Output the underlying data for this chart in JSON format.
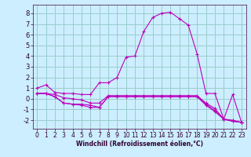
{
  "title": "",
  "xlabel": "Windchill (Refroidissement éolien,°C)",
  "ylabel": "",
  "bg_color": "#cceeff",
  "grid_color": "#99cccc",
  "line_color": "#bb00bb",
  "xlim": [
    -0.5,
    23.5
  ],
  "ylim": [
    -2.8,
    8.8
  ],
  "xticks": [
    0,
    1,
    2,
    3,
    4,
    5,
    6,
    7,
    8,
    9,
    10,
    11,
    12,
    13,
    14,
    15,
    16,
    17,
    18,
    19,
    20,
    21,
    22,
    23
  ],
  "yticks": [
    -2,
    -1,
    0,
    1,
    2,
    3,
    4,
    5,
    6,
    7,
    8
  ],
  "curves": [
    {
      "x": [
        0,
        1,
        2,
        3,
        4,
        5,
        6,
        7,
        8,
        9,
        10,
        11,
        12,
        13,
        14,
        15,
        16,
        17,
        18,
        19,
        20,
        21,
        22,
        23
      ],
      "y": [
        1.0,
        1.3,
        0.6,
        0.5,
        0.5,
        0.4,
        0.4,
        1.5,
        1.5,
        2.0,
        3.9,
        4.0,
        6.3,
        7.6,
        8.0,
        8.1,
        7.5,
        6.9,
        4.2,
        0.5,
        0.5,
        -1.9,
        0.4,
        -2.2
      ]
    },
    {
      "x": [
        0,
        1,
        2,
        3,
        4,
        5,
        6,
        7,
        8,
        9,
        10,
        11,
        12,
        13,
        14,
        15,
        16,
        17,
        18,
        19,
        20,
        21,
        22,
        23
      ],
      "y": [
        0.5,
        0.5,
        0.4,
        0.1,
        0.0,
        -0.1,
        -0.4,
        -0.4,
        0.3,
        0.3,
        0.3,
        0.3,
        0.3,
        0.3,
        0.3,
        0.3,
        0.3,
        0.3,
        0.3,
        -0.4,
        -0.9,
        -1.9,
        -2.0,
        -2.2
      ]
    },
    {
      "x": [
        0,
        1,
        2,
        3,
        4,
        5,
        6,
        7,
        8,
        9,
        10,
        11,
        12,
        13,
        14,
        15,
        16,
        17,
        18,
        19,
        20,
        21,
        22,
        23
      ],
      "y": [
        0.5,
        0.5,
        0.2,
        -0.4,
        -0.5,
        -0.5,
        -0.6,
        -0.8,
        0.2,
        0.2,
        0.2,
        0.2,
        0.2,
        0.2,
        0.2,
        0.2,
        0.2,
        0.2,
        0.2,
        -0.5,
        -1.1,
        -1.9,
        -2.1,
        -2.2
      ]
    },
    {
      "x": [
        0,
        1,
        2,
        3,
        4,
        5,
        6,
        7,
        8,
        9,
        10,
        11,
        12,
        13,
        14,
        15,
        16,
        17,
        18,
        19,
        20,
        21,
        22,
        23
      ],
      "y": [
        0.5,
        0.5,
        0.2,
        -0.4,
        -0.5,
        -0.6,
        -0.8,
        -0.8,
        0.2,
        0.2,
        0.2,
        0.2,
        0.2,
        0.2,
        0.2,
        0.2,
        0.2,
        0.2,
        0.2,
        -0.6,
        -1.2,
        -1.9,
        -2.1,
        -2.2
      ]
    }
  ],
  "tick_fontsize": 5.5,
  "xlabel_fontsize": 5.5,
  "linewidth": 0.8,
  "markersize": 3.0
}
